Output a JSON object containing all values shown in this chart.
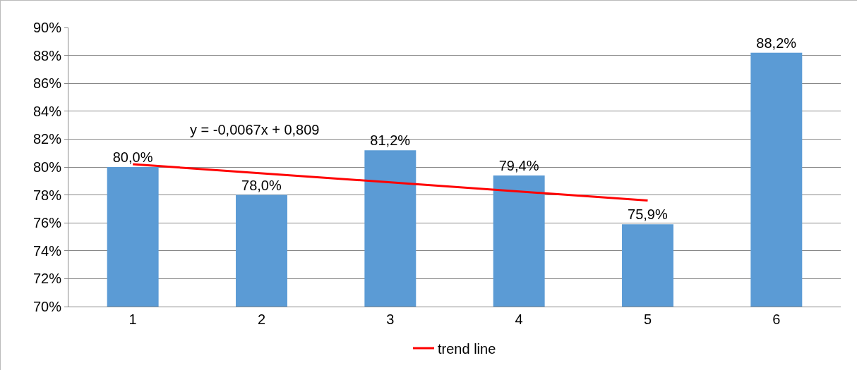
{
  "chart_data": {
    "type": "bar",
    "categories": [
      "1",
      "2",
      "3",
      "4",
      "5",
      "6"
    ],
    "series": [
      {
        "color": "#5b9bd5",
        "values": [
          80.0,
          78.0,
          81.2,
          79.4,
          75.9,
          88.2
        ],
        "value_labels": [
          "80,0%",
          "78,0%",
          "81,2%",
          "79,4%",
          "75,9%",
          "88,2%"
        ]
      },
      {
        "type": "line",
        "name": "trend line",
        "color": "#ff0000",
        "x": [
          "1",
          "5"
        ],
        "values": [
          80.2,
          77.6
        ]
      }
    ],
    "ylim": [
      70,
      90
    ],
    "yticks": [
      {
        "value": 70,
        "label": "70%"
      },
      {
        "value": 72,
        "label": "72%"
      },
      {
        "value": 74,
        "label": "74%"
      },
      {
        "value": 76,
        "label": "76%"
      },
      {
        "value": 78,
        "label": "78%"
      },
      {
        "value": 80,
        "label": "80%"
      },
      {
        "value": 82,
        "label": "82%"
      },
      {
        "value": 84,
        "label": "84%"
      },
      {
        "value": 86,
        "label": "86%"
      },
      {
        "value": 88,
        "label": "88%"
      },
      {
        "value": 90,
        "label": "90%"
      }
    ],
    "annotations": [
      "y = -0,0067x + 0,809"
    ],
    "grid": "y",
    "legend": "bottom"
  }
}
